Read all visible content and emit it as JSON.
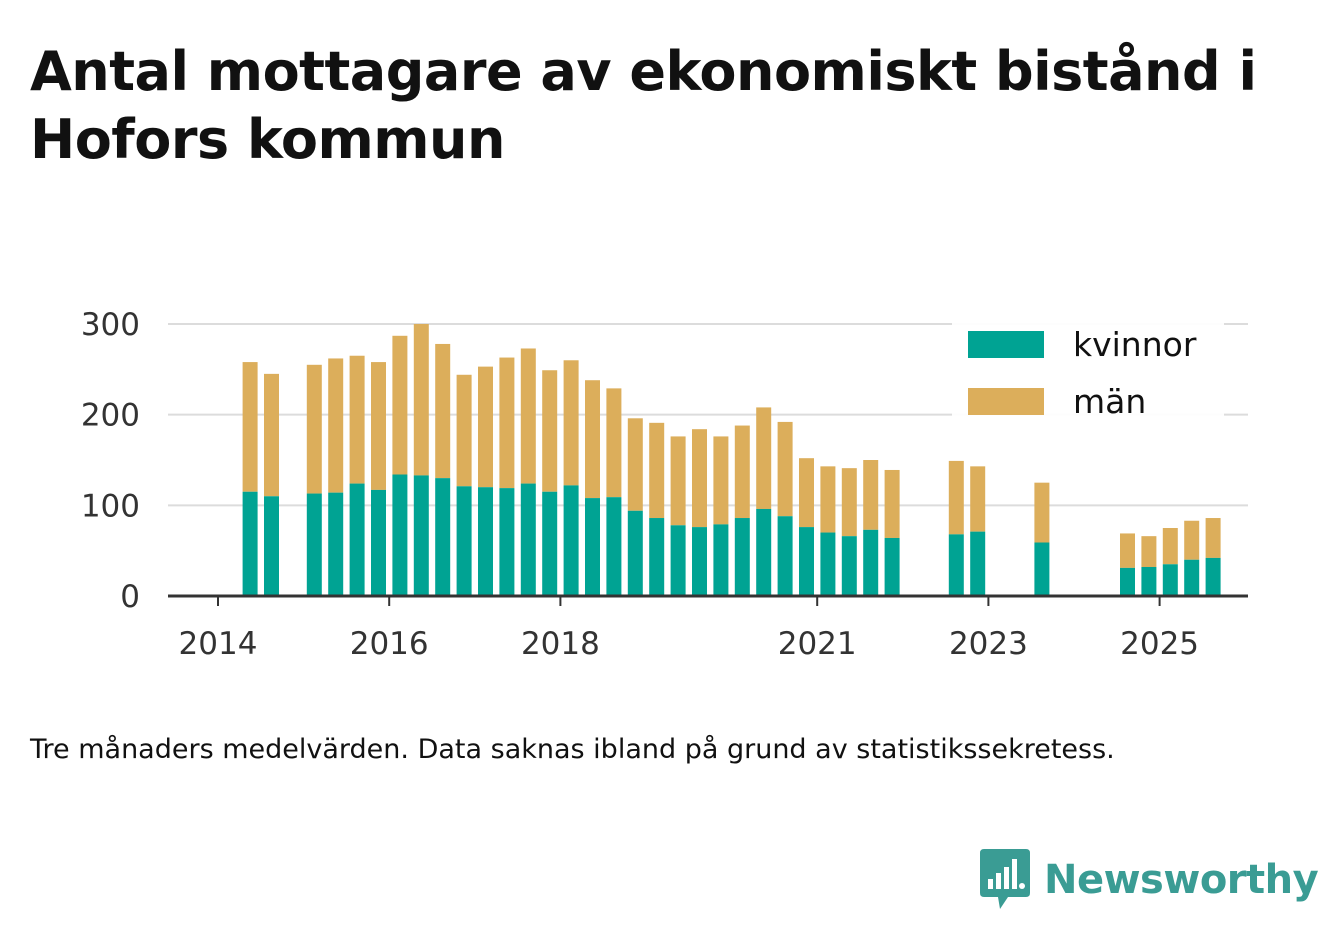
{
  "title": "Antal mottagare av ekonomiskt bistånd i Hofors kommun",
  "note": "Tre månaders medelvärden. Data saknas ibland på grund av statistikssekretess.",
  "brand": {
    "name": "Newsworthy",
    "icon": "newsworthy-logo-icon",
    "color": "#3a9c94"
  },
  "chart_data": {
    "type": "bar",
    "stacked": true,
    "title": "Antal mottagare av ekonomiskt bistånd i Hofors kommun",
    "xlabel": "",
    "ylabel": "",
    "ylim": [
      0,
      300
    ],
    "yticks": [
      0,
      100,
      200,
      300
    ],
    "x_ticks": [
      {
        "label": "2014",
        "year": 2014
      },
      {
        "label": "2016",
        "year": 2016
      },
      {
        "label": "2018",
        "year": 2018
      },
      {
        "label": "2021",
        "year": 2021
      },
      {
        "label": "2023",
        "year": 2023
      },
      {
        "label": "2025",
        "year": 2025
      }
    ],
    "grid": true,
    "legend_position": "top-right",
    "legend": [
      {
        "label": "kvinnor",
        "color": "#00a393"
      },
      {
        "label": "män",
        "color": "#dcae5b"
      }
    ],
    "periods": [
      {
        "year": 2014,
        "q": 2,
        "kvinnor": 115,
        "man": 143
      },
      {
        "year": 2014,
        "q": 3,
        "kvinnor": 110,
        "man": 135
      },
      {
        "year": 2015,
        "q": 1,
        "kvinnor": 113,
        "man": 142
      },
      {
        "year": 2015,
        "q": 2,
        "kvinnor": 114,
        "man": 148
      },
      {
        "year": 2015,
        "q": 3,
        "kvinnor": 124,
        "man": 141
      },
      {
        "year": 2015,
        "q": 4,
        "kvinnor": 117,
        "man": 141
      },
      {
        "year": 2016,
        "q": 1,
        "kvinnor": 134,
        "man": 153
      },
      {
        "year": 2016,
        "q": 2,
        "kvinnor": 133,
        "man": 167
      },
      {
        "year": 2016,
        "q": 3,
        "kvinnor": 130,
        "man": 148
      },
      {
        "year": 2016,
        "q": 4,
        "kvinnor": 121,
        "man": 123
      },
      {
        "year": 2017,
        "q": 1,
        "kvinnor": 120,
        "man": 133
      },
      {
        "year": 2017,
        "q": 2,
        "kvinnor": 119,
        "man": 144
      },
      {
        "year": 2017,
        "q": 3,
        "kvinnor": 124,
        "man": 149
      },
      {
        "year": 2017,
        "q": 4,
        "kvinnor": 115,
        "man": 134
      },
      {
        "year": 2018,
        "q": 1,
        "kvinnor": 122,
        "man": 138
      },
      {
        "year": 2018,
        "q": 2,
        "kvinnor": 108,
        "man": 130
      },
      {
        "year": 2018,
        "q": 3,
        "kvinnor": 109,
        "man": 120
      },
      {
        "year": 2018,
        "q": 4,
        "kvinnor": 94,
        "man": 102
      },
      {
        "year": 2019,
        "q": 1,
        "kvinnor": 86,
        "man": 105
      },
      {
        "year": 2019,
        "q": 2,
        "kvinnor": 78,
        "man": 98
      },
      {
        "year": 2019,
        "q": 3,
        "kvinnor": 76,
        "man": 108
      },
      {
        "year": 2019,
        "q": 4,
        "kvinnor": 79,
        "man": 97
      },
      {
        "year": 2020,
        "q": 1,
        "kvinnor": 86,
        "man": 102
      },
      {
        "year": 2020,
        "q": 2,
        "kvinnor": 96,
        "man": 112
      },
      {
        "year": 2020,
        "q": 3,
        "kvinnor": 88,
        "man": 104
      },
      {
        "year": 2020,
        "q": 4,
        "kvinnor": 76,
        "man": 76
      },
      {
        "year": 2021,
        "q": 1,
        "kvinnor": 70,
        "man": 73
      },
      {
        "year": 2021,
        "q": 2,
        "kvinnor": 66,
        "man": 75
      },
      {
        "year": 2021,
        "q": 3,
        "kvinnor": 73,
        "man": 77
      },
      {
        "year": 2021,
        "q": 4,
        "kvinnor": 64,
        "man": 75
      },
      {
        "year": 2022,
        "q": 3,
        "kvinnor": 68,
        "man": 81
      },
      {
        "year": 2022,
        "q": 4,
        "kvinnor": 71,
        "man": 72
      },
      {
        "year": 2023,
        "q": 3,
        "kvinnor": 59,
        "man": 66
      },
      {
        "year": 2024,
        "q": 3,
        "kvinnor": 31,
        "man": 38
      },
      {
        "year": 2024,
        "q": 4,
        "kvinnor": 32,
        "man": 34
      },
      {
        "year": 2025,
        "q": 1,
        "kvinnor": 35,
        "man": 40
      },
      {
        "year": 2025,
        "q": 2,
        "kvinnor": 40,
        "man": 43
      },
      {
        "year": 2025,
        "q": 3,
        "kvinnor": 42,
        "man": 44
      }
    ]
  }
}
